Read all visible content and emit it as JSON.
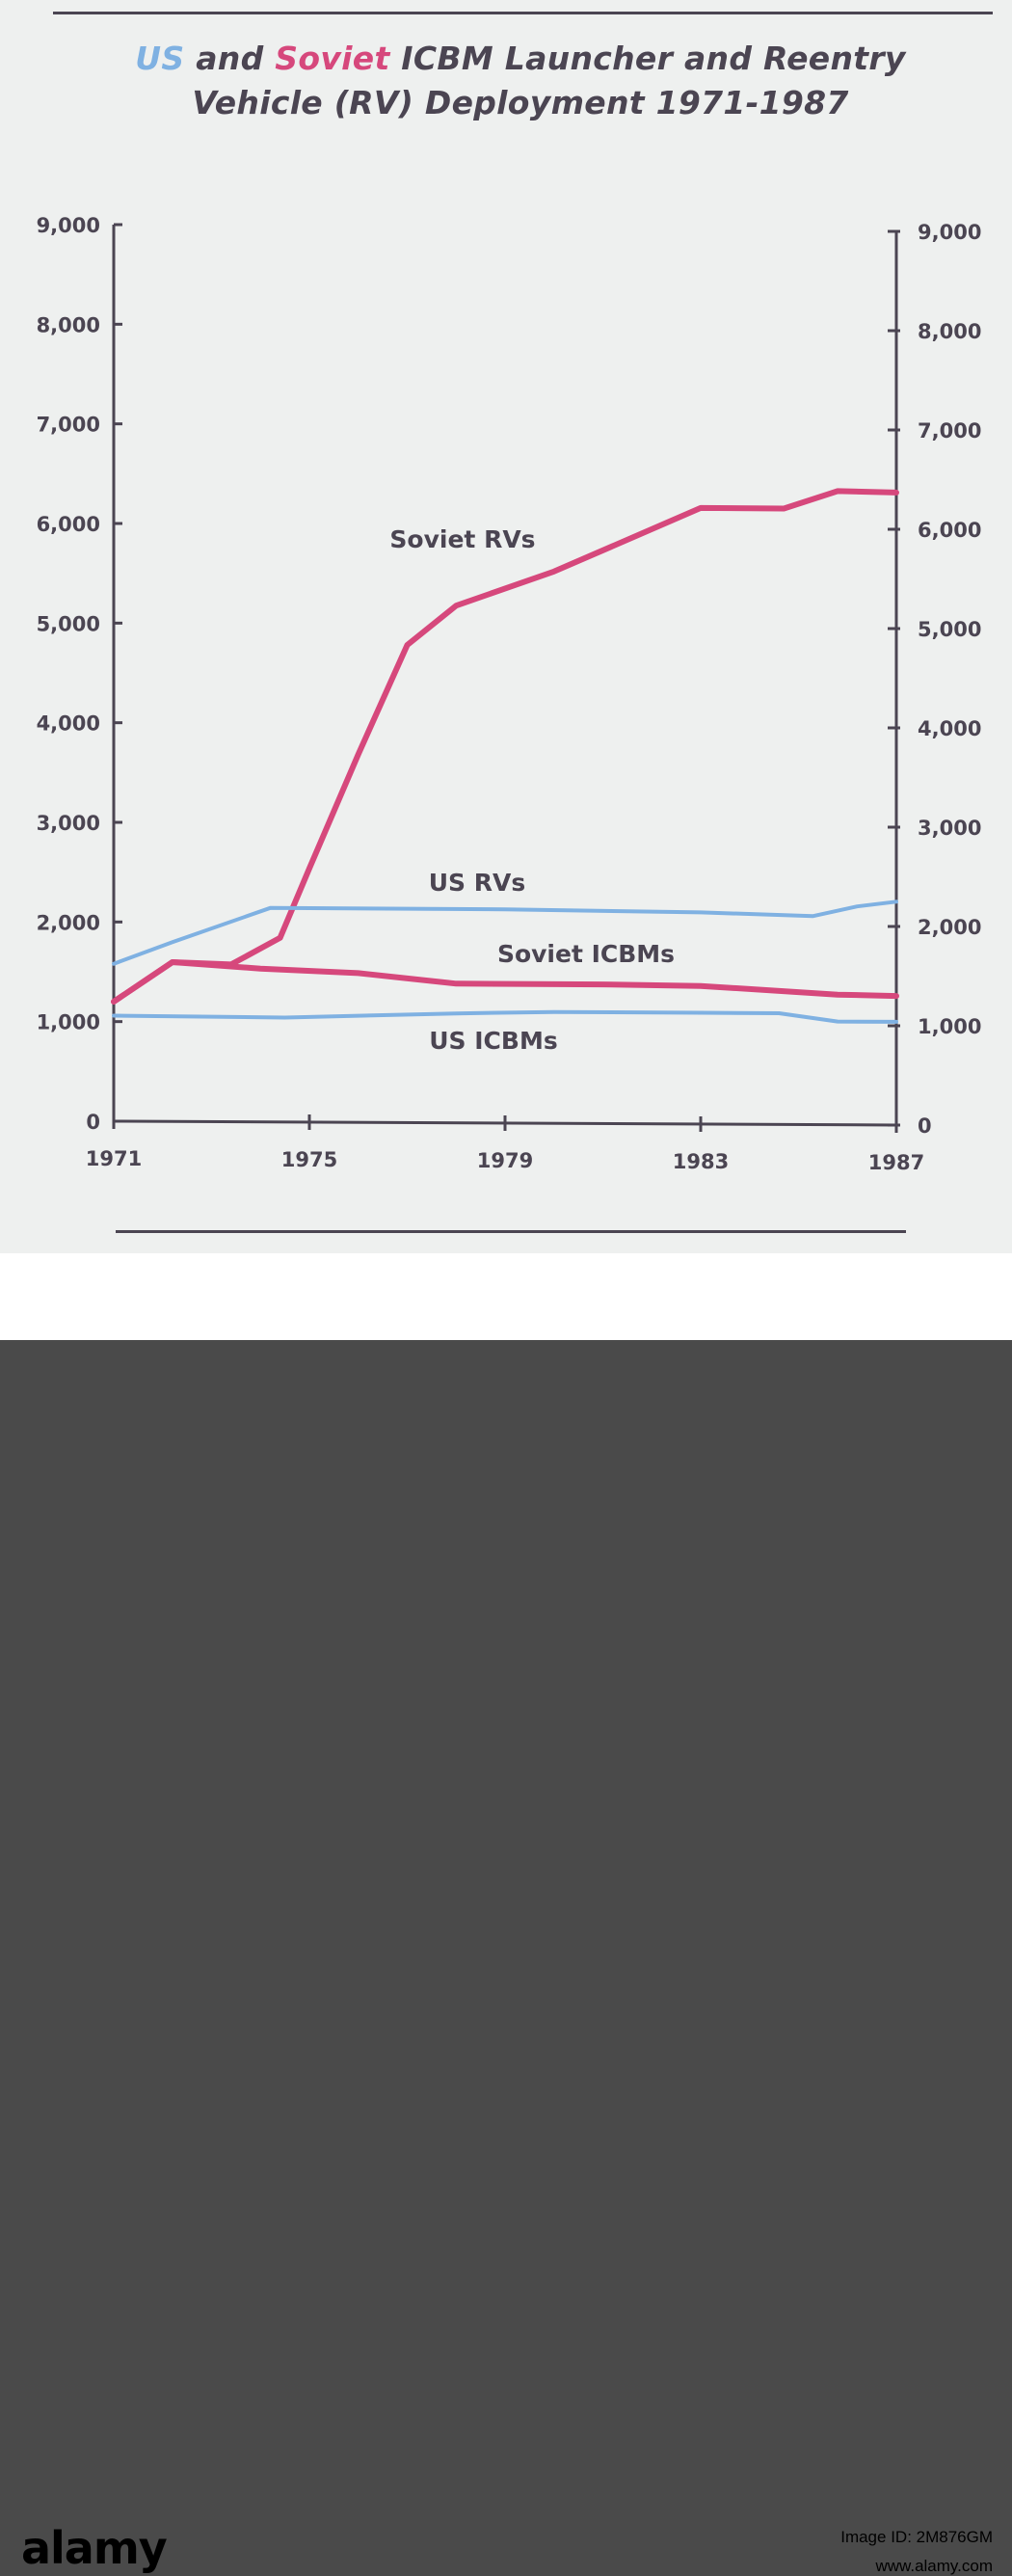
{
  "title": {
    "us": "US",
    "and": " and ",
    "soviet": "Soviet",
    "rest_line1": " ICBM Launcher and Reentry",
    "line2": "Vehicle (RV) Deployment 1971-1987"
  },
  "footer": {
    "brand": "alamy",
    "image_id": "Image ID: 2M876GM",
    "site": "www.alamy.com"
  },
  "colors": {
    "us": "#7fb1e2",
    "soviet": "#d6487c",
    "ink": "#4b4552",
    "background": "#eef0ef"
  },
  "chart_data": {
    "type": "line",
    "title": "US and Soviet ICBM Launcher and Reentry Vehicle (RV) Deployment 1971-1987",
    "xlabel": "",
    "ylabel": "",
    "xlim": [
      1971,
      1987
    ],
    "ylim": [
      0,
      9000
    ],
    "x_ticks": [
      "1971",
      "1975",
      "1979",
      "1983",
      "1987"
    ],
    "y_ticks": [
      "0",
      "1,000",
      "2,000",
      "3,000",
      "4,000",
      "5,000",
      "6,000",
      "7,000",
      "8,000",
      "9,000"
    ],
    "grid": false,
    "legend": "inline labels",
    "secondary_y_axis": true,
    "series": [
      {
        "name": "Soviet RVs",
        "color": "#d6487c",
        "points": [
          [
            1971,
            1200
          ],
          [
            1972.2,
            1600
          ],
          [
            1973.4,
            1580
          ],
          [
            1974.4,
            1850
          ],
          [
            1975,
            2550
          ],
          [
            1976,
            3700
          ],
          [
            1977,
            4800
          ],
          [
            1978,
            5200
          ],
          [
            1980,
            5550
          ],
          [
            1983,
            6200
          ],
          [
            1984.7,
            6200
          ],
          [
            1985.8,
            6380
          ],
          [
            1987,
            6370
          ]
        ]
      },
      {
        "name": "US RVs",
        "color": "#7fb1e2",
        "points": [
          [
            1971,
            1580
          ],
          [
            1972.2,
            1800
          ],
          [
            1974.2,
            2150
          ],
          [
            1979,
            2150
          ],
          [
            1983,
            2130
          ],
          [
            1985.3,
            2100
          ],
          [
            1986.2,
            2200
          ],
          [
            1987,
            2250
          ]
        ]
      },
      {
        "name": "Soviet ICBMs",
        "color": "#d6487c",
        "points": [
          [
            1971,
            1200
          ],
          [
            1972.2,
            1600
          ],
          [
            1974,
            1540
          ],
          [
            1976,
            1500
          ],
          [
            1978,
            1400
          ],
          [
            1981,
            1400
          ],
          [
            1983,
            1390
          ],
          [
            1985.8,
            1310
          ],
          [
            1987,
            1300
          ]
        ]
      },
      {
        "name": "US ICBMs",
        "color": "#7fb1e2",
        "points": [
          [
            1971,
            1060
          ],
          [
            1974.5,
            1050
          ],
          [
            1978,
            1100
          ],
          [
            1980,
            1120
          ],
          [
            1983,
            1120
          ],
          [
            1984.6,
            1120
          ],
          [
            1985.8,
            1040
          ],
          [
            1987,
            1040
          ]
        ]
      }
    ]
  }
}
